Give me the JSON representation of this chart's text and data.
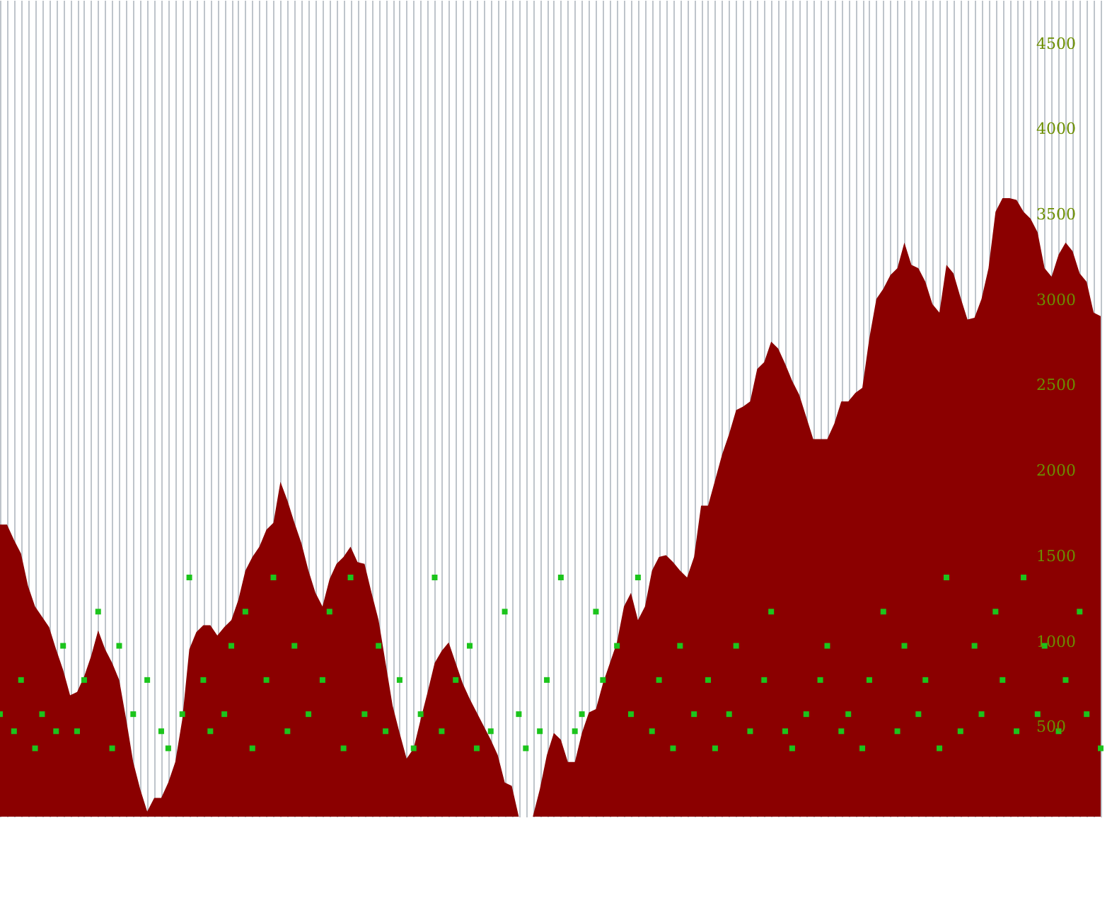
{
  "chart_data": {
    "type": "area",
    "categories": [
      null,
      null,
      null,
      null,
      null,
      null,
      null,
      null,
      null,
      null,
      null,
      null,
      null,
      null,
      null,
      null,
      null,
      null,
      null,
      null,
      null,
      null,
      null,
      null,
      null,
      null,
      null,
      null,
      null,
      null,
      null,
      null,
      null,
      null,
      null,
      null,
      null,
      null,
      null,
      null,
      null,
      null,
      null,
      null,
      null,
      null,
      null,
      null,
      null,
      null,
      null,
      null,
      null,
      null,
      null,
      null,
      null,
      null,
      null,
      null,
      null,
      null,
      null,
      null,
      null,
      null,
      null,
      null,
      null,
      null,
      null,
      null,
      null,
      null,
      null,
      null,
      null,
      null,
      null,
      null,
      null,
      null,
      null,
      null,
      null,
      null,
      null,
      null,
      null,
      null,
      null,
      null,
      null,
      null,
      null,
      null,
      null,
      null,
      null,
      null,
      null,
      null,
      null,
      null,
      null,
      null,
      null,
      null,
      null,
      null,
      null,
      null,
      null,
      null,
      null,
      null,
      null,
      null,
      null,
      null,
      null,
      null,
      null,
      null,
      null,
      null,
      null,
      null,
      null,
      null,
      null,
      null,
      null,
      null,
      null,
      null,
      null,
      null,
      null,
      null,
      null,
      null,
      null,
      null,
      null,
      null,
      null,
      null,
      null,
      null,
      null,
      null,
      null,
      null,
      null,
      null,
      null,
      null
    ],
    "series": [
      {
        "color": "#8b0000",
        "values": [
          1710,
          1710,
          1620,
          1540,
          1350,
          1230,
          1170,
          1110,
          980,
          860,
          710,
          730,
          820,
          940,
          1090,
          980,
          900,
          800,
          570,
          320,
          160,
          30,
          110,
          110,
          200,
          320,
          570,
          980,
          1080,
          1120,
          1120,
          1060,
          1110,
          1150,
          1270,
          1440,
          1520,
          1580,
          1680,
          1720,
          1960,
          1850,
          1720,
          1600,
          1440,
          1310,
          1230,
          1390,
          1480,
          1520,
          1580,
          1490,
          1480,
          1310,
          1150,
          900,
          650,
          490,
          340,
          400,
          570,
          730,
          900,
          970,
          1020,
          900,
          780,
          690,
          610,
          530,
          450,
          360,
          200,
          180,
          0,
          0,
          0,
          160,
          360,
          490,
          450,
          320,
          320,
          490,
          610,
          630,
          780,
          900,
          1020,
          1230,
          1310,
          1150,
          1230,
          1440,
          1520,
          1530,
          1490,
          1440,
          1400,
          1520,
          1820,
          1820,
          1970,
          2120,
          2240,
          2380,
          2400,
          2430,
          2620,
          2660,
          2780,
          2740,
          2650,
          2550,
          2470,
          2340,
          2210,
          2210,
          2210,
          2300,
          2430,
          2430,
          2480,
          2510,
          2800,
          3030,
          3090,
          3170,
          3210,
          3360,
          3230,
          3210,
          3130,
          3000,
          2950,
          3230,
          3180,
          3040,
          2910,
          2920,
          3030,
          3210,
          3540,
          3620,
          3620,
          3610,
          3540,
          3500,
          3420,
          3210,
          3160,
          3290,
          3360,
          3310,
          3180,
          3130,
          2950,
          2930
        ]
      },
      {
        "type": "scatter",
        "color": "#1cc41c",
        "marker": "square",
        "values": [
          600,
          null,
          500,
          800,
          null,
          400,
          600,
          null,
          500,
          1000,
          null,
          500,
          800,
          null,
          1200,
          null,
          400,
          1000,
          null,
          600,
          null,
          800,
          null,
          500,
          400,
          null,
          600,
          1400,
          null,
          800,
          500,
          null,
          600,
          1000,
          null,
          1200,
          400,
          null,
          800,
          1400,
          null,
          500,
          1000,
          null,
          600,
          null,
          800,
          1200,
          null,
          400,
          1400,
          null,
          600,
          null,
          1000,
          500,
          null,
          800,
          null,
          400,
          600,
          null,
          1400,
          500,
          null,
          800,
          null,
          1000,
          400,
          null,
          500,
          null,
          1200,
          null,
          600,
          400,
          null,
          500,
          800,
          null,
          1400,
          null,
          500,
          600,
          null,
          1200,
          800,
          null,
          1000,
          null,
          600,
          1400,
          null,
          500,
          800,
          null,
          400,
          1000,
          null,
          600,
          null,
          800,
          400,
          null,
          600,
          1000,
          null,
          500,
          null,
          800,
          1200,
          null,
          500,
          400,
          null,
          600,
          null,
          800,
          1000,
          null,
          500,
          600,
          null,
          400,
          800,
          null,
          1200,
          null,
          500,
          1000,
          null,
          600,
          800,
          null,
          400,
          1400,
          null,
          500,
          null,
          1000,
          600,
          null,
          1200,
          800,
          null,
          500,
          1400,
          null,
          600,
          1000,
          null,
          500,
          800,
          null,
          1200,
          600,
          null,
          400
        ]
      }
    ],
    "ylim": [
      0,
      4780
    ],
    "yticks": [
      500,
      1000,
      1500,
      2000,
      2500,
      3000,
      3500,
      4000,
      4500
    ],
    "grid": "x"
  }
}
